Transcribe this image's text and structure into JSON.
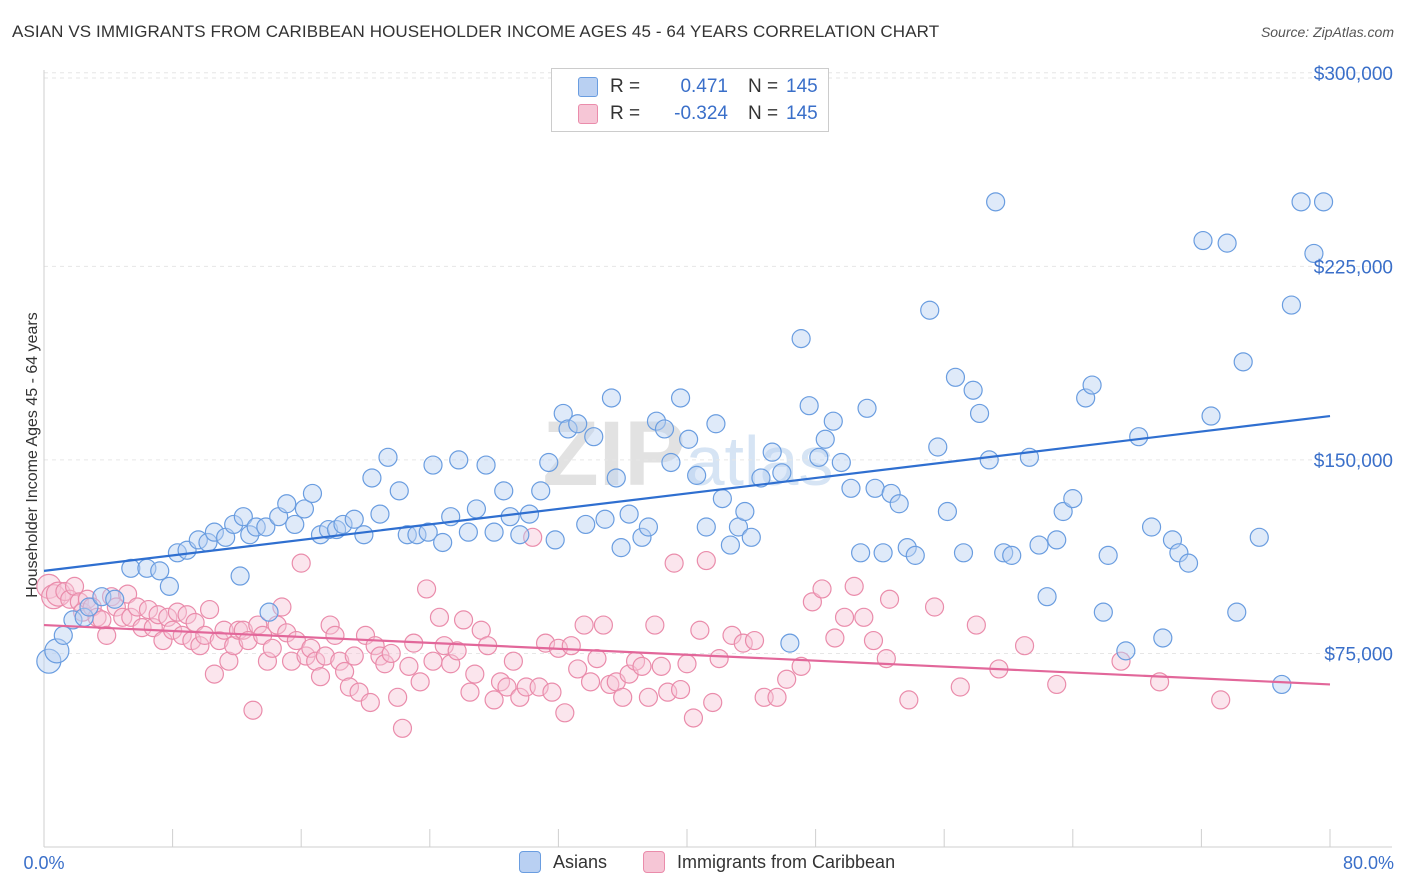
{
  "header": {
    "title": "ASIAN VS IMMIGRANTS FROM CARIBBEAN HOUSEHOLDER INCOME AGES 45 - 64 YEARS CORRELATION CHART",
    "source": "Source: ZipAtlas.com"
  },
  "watermark": "ZIPatlas",
  "legend": {
    "rows": [
      {
        "r_label": "R =",
        "r_value": "0.471",
        "n_label": "N =",
        "n_value": "145"
      },
      {
        "r_label": "R =",
        "r_value": "-0.324",
        "n_label": "N =",
        "n_value": "145"
      }
    ]
  },
  "colors": {
    "asians": "#6a9de0",
    "asians_fill": "#b9d0f2",
    "asians_line": "#2f6fd0",
    "caribbean": "#ea8cab",
    "caribbean_fill": "#f6c6d6",
    "caribbean_line": "#e2679a",
    "value_text": "#3a6fc9"
  },
  "chart_data": {
    "type": "scatter",
    "xlabel": "",
    "ylabel": "Householder Income Ages 45 - 64 years",
    "x_tick_labels": [
      "0.0%",
      "80.0%"
    ],
    "y_tick_labels": [
      "$75,000",
      "$150,000",
      "$225,000",
      "$300,000"
    ],
    "y_ticks": [
      75000,
      150000,
      225000,
      300000
    ],
    "xlim": [
      0,
      80
    ],
    "ylim": [
      0,
      310000
    ],
    "grid": true,
    "legend_position": "top-center",
    "series": [
      {
        "name": "Asians",
        "trend": {
          "x": [
            0,
            80
          ],
          "y": [
            107000,
            167000
          ]
        },
        "points": [
          [
            0.3,
            72000
          ],
          [
            0.8,
            76000
          ],
          [
            1.2,
            82000
          ],
          [
            1.8,
            88000
          ],
          [
            2.5,
            89000
          ],
          [
            2.8,
            93000
          ],
          [
            3.6,
            97000
          ],
          [
            4.4,
            96000
          ],
          [
            5.4,
            108000
          ],
          [
            6.4,
            108000
          ],
          [
            7.2,
            107000
          ],
          [
            7.8,
            101000
          ],
          [
            8.3,
            114000
          ],
          [
            8.9,
            115000
          ],
          [
            9.6,
            119000
          ],
          [
            10.2,
            118000
          ],
          [
            10.6,
            122000
          ],
          [
            11.3,
            120000
          ],
          [
            11.8,
            125000
          ],
          [
            12.2,
            105000
          ],
          [
            12.4,
            128000
          ],
          [
            12.8,
            121000
          ],
          [
            13.2,
            124000
          ],
          [
            13.8,
            124000
          ],
          [
            14.0,
            91000
          ],
          [
            14.6,
            128000
          ],
          [
            15.1,
            133000
          ],
          [
            15.6,
            125000
          ],
          [
            16.2,
            131000
          ],
          [
            16.7,
            137000
          ],
          [
            17.2,
            121000
          ],
          [
            17.7,
            123000
          ],
          [
            18.2,
            123000
          ],
          [
            18.6,
            125000
          ],
          [
            19.3,
            127000
          ],
          [
            19.9,
            121000
          ],
          [
            20.4,
            143000
          ],
          [
            20.9,
            129000
          ],
          [
            21.4,
            151000
          ],
          [
            22.1,
            138000
          ],
          [
            22.6,
            121000
          ],
          [
            23.2,
            121000
          ],
          [
            23.9,
            122000
          ],
          [
            24.2,
            148000
          ],
          [
            24.8,
            118000
          ],
          [
            25.3,
            128000
          ],
          [
            25.8,
            150000
          ],
          [
            26.4,
            122000
          ],
          [
            26.9,
            131000
          ],
          [
            27.5,
            148000
          ],
          [
            28.0,
            122000
          ],
          [
            28.6,
            138000
          ],
          [
            29.0,
            128000
          ],
          [
            29.6,
            121000
          ],
          [
            30.2,
            129000
          ],
          [
            30.9,
            138000
          ],
          [
            31.4,
            149000
          ],
          [
            31.8,
            119000
          ],
          [
            32.3,
            168000
          ],
          [
            32.6,
            162000
          ],
          [
            33.2,
            164000
          ],
          [
            33.7,
            125000
          ],
          [
            34.2,
            159000
          ],
          [
            34.9,
            127000
          ],
          [
            35.3,
            174000
          ],
          [
            35.6,
            143000
          ],
          [
            35.9,
            116000
          ],
          [
            36.4,
            129000
          ],
          [
            37.2,
            120000
          ],
          [
            37.6,
            124000
          ],
          [
            38.1,
            165000
          ],
          [
            38.6,
            162000
          ],
          [
            39.0,
            149000
          ],
          [
            39.6,
            174000
          ],
          [
            40.1,
            158000
          ],
          [
            40.6,
            144000
          ],
          [
            41.2,
            124000
          ],
          [
            41.8,
            164000
          ],
          [
            42.2,
            135000
          ],
          [
            42.7,
            117000
          ],
          [
            43.2,
            124000
          ],
          [
            43.6,
            130000
          ],
          [
            44.0,
            120000
          ],
          [
            44.6,
            143000
          ],
          [
            45.3,
            153000
          ],
          [
            45.9,
            145000
          ],
          [
            46.4,
            79000
          ],
          [
            47.1,
            197000
          ],
          [
            47.6,
            171000
          ],
          [
            48.2,
            151000
          ],
          [
            48.6,
            158000
          ],
          [
            49.1,
            165000
          ],
          [
            49.6,
            149000
          ],
          [
            50.2,
            139000
          ],
          [
            50.8,
            114000
          ],
          [
            51.2,
            170000
          ],
          [
            51.7,
            139000
          ],
          [
            52.2,
            114000
          ],
          [
            52.7,
            137000
          ],
          [
            53.2,
            133000
          ],
          [
            53.7,
            116000
          ],
          [
            54.2,
            113000
          ],
          [
            55.1,
            208000
          ],
          [
            55.6,
            155000
          ],
          [
            56.2,
            130000
          ],
          [
            56.7,
            182000
          ],
          [
            57.2,
            114000
          ],
          [
            57.8,
            177000
          ],
          [
            58.2,
            168000
          ],
          [
            58.8,
            150000
          ],
          [
            59.2,
            250000
          ],
          [
            59.7,
            114000
          ],
          [
            60.2,
            113000
          ],
          [
            61.3,
            151000
          ],
          [
            61.9,
            117000
          ],
          [
            62.4,
            97000
          ],
          [
            63.0,
            119000
          ],
          [
            63.4,
            130000
          ],
          [
            64.0,
            135000
          ],
          [
            64.8,
            174000
          ],
          [
            65.2,
            179000
          ],
          [
            65.9,
            91000
          ],
          [
            66.2,
            113000
          ],
          [
            67.3,
            76000
          ],
          [
            68.1,
            159000
          ],
          [
            68.9,
            124000
          ],
          [
            69.6,
            81000
          ],
          [
            70.2,
            119000
          ],
          [
            70.6,
            114000
          ],
          [
            71.2,
            110000
          ],
          [
            72.1,
            235000
          ],
          [
            72.6,
            167000
          ],
          [
            73.6,
            234000
          ],
          [
            74.2,
            91000
          ],
          [
            74.6,
            188000
          ],
          [
            75.6,
            120000
          ],
          [
            77.0,
            63000
          ],
          [
            79.6,
            250000
          ],
          [
            78.2,
            250000
          ],
          [
            77.6,
            210000
          ],
          [
            79.0,
            230000
          ]
        ]
      },
      {
        "name": "Immigrants from Caribbean",
        "trend": {
          "x": [
            0,
            80
          ],
          "y": [
            86000,
            63000
          ]
        },
        "points": [
          [
            0.3,
            101000
          ],
          [
            0.6,
            97000
          ],
          [
            0.9,
            98000
          ],
          [
            1.3,
            99000
          ],
          [
            1.6,
            96000
          ],
          [
            1.9,
            101000
          ],
          [
            2.2,
            95000
          ],
          [
            2.4,
            91000
          ],
          [
            2.7,
            96000
          ],
          [
            3.0,
            93000
          ],
          [
            3.3,
            89000
          ],
          [
            3.6,
            88000
          ],
          [
            3.9,
            82000
          ],
          [
            4.2,
            97000
          ],
          [
            4.5,
            93000
          ],
          [
            4.9,
            89000
          ],
          [
            5.2,
            98000
          ],
          [
            5.4,
            89000
          ],
          [
            5.8,
            93000
          ],
          [
            6.1,
            85000
          ],
          [
            6.5,
            92000
          ],
          [
            6.8,
            85000
          ],
          [
            7.1,
            90000
          ],
          [
            7.4,
            80000
          ],
          [
            7.7,
            89000
          ],
          [
            8.0,
            84000
          ],
          [
            8.3,
            91000
          ],
          [
            8.6,
            82000
          ],
          [
            8.9,
            90000
          ],
          [
            9.2,
            80000
          ],
          [
            9.4,
            87000
          ],
          [
            9.7,
            78000
          ],
          [
            10.0,
            82000
          ],
          [
            10.3,
            92000
          ],
          [
            10.6,
            67000
          ],
          [
            10.9,
            80000
          ],
          [
            11.2,
            84000
          ],
          [
            11.5,
            72000
          ],
          [
            11.8,
            78000
          ],
          [
            12.1,
            84000
          ],
          [
            12.4,
            84000
          ],
          [
            12.7,
            80000
          ],
          [
            13.0,
            53000
          ],
          [
            13.3,
            86000
          ],
          [
            13.6,
            82000
          ],
          [
            13.9,
            72000
          ],
          [
            14.2,
            77000
          ],
          [
            14.5,
            86000
          ],
          [
            14.8,
            93000
          ],
          [
            15.1,
            83000
          ],
          [
            15.4,
            72000
          ],
          [
            15.7,
            80000
          ],
          [
            16.0,
            110000
          ],
          [
            16.3,
            74000
          ],
          [
            16.6,
            77000
          ],
          [
            16.9,
            72000
          ],
          [
            17.2,
            66000
          ],
          [
            17.5,
            74000
          ],
          [
            17.8,
            86000
          ],
          [
            18.1,
            82000
          ],
          [
            18.4,
            72000
          ],
          [
            18.7,
            68000
          ],
          [
            19.0,
            62000
          ],
          [
            19.3,
            74000
          ],
          [
            19.6,
            60000
          ],
          [
            20.0,
            82000
          ],
          [
            20.3,
            56000
          ],
          [
            20.6,
            78000
          ],
          [
            20.9,
            74000
          ],
          [
            21.2,
            71000
          ],
          [
            21.6,
            75000
          ],
          [
            22.0,
            58000
          ],
          [
            22.3,
            46000
          ],
          [
            22.7,
            70000
          ],
          [
            23.0,
            79000
          ],
          [
            23.4,
            64000
          ],
          [
            23.8,
            100000
          ],
          [
            24.2,
            72000
          ],
          [
            24.6,
            89000
          ],
          [
            24.9,
            78000
          ],
          [
            25.3,
            71000
          ],
          [
            25.7,
            76000
          ],
          [
            26.1,
            88000
          ],
          [
            26.5,
            60000
          ],
          [
            26.8,
            67000
          ],
          [
            27.2,
            84000
          ],
          [
            27.6,
            78000
          ],
          [
            28.0,
            57000
          ],
          [
            28.4,
            64000
          ],
          [
            28.8,
            62000
          ],
          [
            29.2,
            72000
          ],
          [
            29.6,
            58000
          ],
          [
            30.0,
            62000
          ],
          [
            30.4,
            120000
          ],
          [
            30.8,
            62000
          ],
          [
            31.2,
            79000
          ],
          [
            31.6,
            60000
          ],
          [
            32.0,
            77000
          ],
          [
            32.4,
            52000
          ],
          [
            32.8,
            78000
          ],
          [
            33.2,
            69000
          ],
          [
            33.6,
            86000
          ],
          [
            34.0,
            64000
          ],
          [
            34.4,
            73000
          ],
          [
            34.8,
            86000
          ],
          [
            35.2,
            63000
          ],
          [
            35.6,
            64000
          ],
          [
            36.0,
            58000
          ],
          [
            36.4,
            67000
          ],
          [
            36.8,
            72000
          ],
          [
            37.2,
            70000
          ],
          [
            37.6,
            58000
          ],
          [
            38.0,
            86000
          ],
          [
            38.4,
            70000
          ],
          [
            38.8,
            60000
          ],
          [
            39.2,
            110000
          ],
          [
            39.6,
            61000
          ],
          [
            40.0,
            71000
          ],
          [
            40.4,
            50000
          ],
          [
            40.8,
            84000
          ],
          [
            41.2,
            111000
          ],
          [
            41.6,
            56000
          ],
          [
            42.0,
            73000
          ],
          [
            42.8,
            82000
          ],
          [
            43.5,
            79000
          ],
          [
            44.2,
            80000
          ],
          [
            44.8,
            58000
          ],
          [
            45.6,
            58000
          ],
          [
            46.2,
            65000
          ],
          [
            47.1,
            70000
          ],
          [
            47.8,
            95000
          ],
          [
            48.4,
            100000
          ],
          [
            49.2,
            81000
          ],
          [
            49.8,
            89000
          ],
          [
            50.4,
            101000
          ],
          [
            51.0,
            89000
          ],
          [
            51.6,
            80000
          ],
          [
            52.4,
            73000
          ],
          [
            52.6,
            96000
          ],
          [
            53.8,
            57000
          ],
          [
            55.4,
            93000
          ],
          [
            57.0,
            62000
          ],
          [
            58.0,
            86000
          ],
          [
            59.4,
            69000
          ],
          [
            61.0,
            78000
          ],
          [
            63.0,
            63000
          ],
          [
            67.0,
            72000
          ],
          [
            69.4,
            64000
          ],
          [
            73.2,
            57000
          ]
        ]
      }
    ]
  },
  "bottom_legend": {
    "items": [
      {
        "label": "Asians"
      },
      {
        "label": "Immigrants from Caribbean"
      }
    ]
  }
}
